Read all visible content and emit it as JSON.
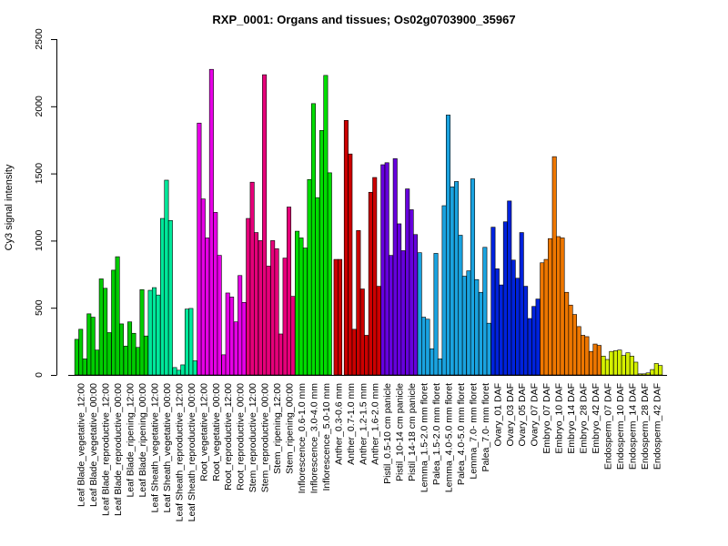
{
  "chart_data": {
    "type": "bar",
    "title": "RXP_0001: Organs and tissues; Os02g0703900_35967",
    "xlabel": "",
    "ylabel": "Cy3 signal intensity",
    "ylim": [
      0,
      2500
    ],
    "yticks": [
      "0",
      "500",
      "1000",
      "1500",
      "2000",
      "2500"
    ],
    "grid": false,
    "groups": [
      {
        "label": "Leaf Blade_vegetative_12:00",
        "color": "#00cc00",
        "values": [
          265,
          340,
          120
        ]
      },
      {
        "label": "Leaf Blade_vegetative_00:00",
        "color": "#00cc00",
        "values": [
          455,
          430,
          185
        ]
      },
      {
        "label": "Leaf Blade_reproductive_12:00",
        "color": "#00cc00",
        "values": [
          715,
          645,
          315
        ]
      },
      {
        "label": "Leaf Blade_reproductive_00:00",
        "color": "#00cc00",
        "values": [
          780,
          880,
          380
        ]
      },
      {
        "label": "Leaf Blade_ripening_12:00",
        "color": "#00cc00",
        "values": [
          215,
          395,
          310
        ]
      },
      {
        "label": "Leaf Blade_ripening_00:00",
        "color": "#00cc00",
        "values": [
          205,
          635,
          290
        ]
      },
      {
        "label": "Leaf Sheath_vegetative_12:00",
        "color": "#00e89a",
        "values": [
          630,
          650,
          595
        ]
      },
      {
        "label": "Leaf Sheath_vegetative_00:00",
        "color": "#00e89a",
        "values": [
          1165,
          1450,
          1150
        ]
      },
      {
        "label": "Leaf Sheath_reproductive_12:00",
        "color": "#00e89a",
        "values": [
          55,
          35,
          75
        ]
      },
      {
        "label": "Leaf Sheath_reproductive_00:00",
        "color": "#00e89a",
        "values": [
          490,
          495,
          105
        ]
      },
      {
        "label": "Root_vegetative_12:00",
        "color": "#e600e6",
        "values": [
          1875,
          1310,
          1020
        ]
      },
      {
        "label": "Root_vegetative_00:00",
        "color": "#e600e6",
        "values": [
          2275,
          1210,
          890
        ]
      },
      {
        "label": "Root_reproductive_12:00",
        "color": "#e600e6",
        "values": [
          150,
          610,
          580
        ]
      },
      {
        "label": "Root_reproductive_00:00",
        "color": "#e600e6",
        "values": [
          395,
          740,
          540
        ]
      },
      {
        "label": "Stem_reproductive_12:00",
        "color": "#e6007a",
        "values": [
          1165,
          1435,
          1060
        ]
      },
      {
        "label": "Stem_reproductive_00:00",
        "color": "#e6007a",
        "values": [
          1000,
          2235,
          810
        ]
      },
      {
        "label": "Stem_ripening_12:00",
        "color": "#e6007a",
        "values": [
          1000,
          940,
          305
        ]
      },
      {
        "label": "Stem_ripening_00:00",
        "color": "#e6007a",
        "values": [
          870,
          1250,
          585
        ]
      },
      {
        "label": "Inflorescence_0.6-1.0 mm",
        "color": "#00dd00",
        "values": [
          1070,
          1020,
          945
        ]
      },
      {
        "label": "Inflorescence_3.0-4.0 mm",
        "color": "#00dd00",
        "values": [
          1455,
          2020,
          1320
        ]
      },
      {
        "label": "Inflorescence_5.0-10 mm",
        "color": "#00dd00",
        "values": [
          1820,
          2230,
          1505
        ]
      },
      {
        "label": "Anther_0.3-0.6 mm",
        "color": "#cc0000",
        "values": [
          860,
          860
        ]
      },
      {
        "label": "Anther_0.7-1.0 mm",
        "color": "#cc0000",
        "values": [
          1895,
          1645,
          340
        ]
      },
      {
        "label": "Anther_1.2-1.5 mm",
        "color": "#cc0000",
        "values": [
          1075,
          640,
          295
        ]
      },
      {
        "label": "Anther_1.6-2.0 mm",
        "color": "#cc0000",
        "values": [
          1360,
          1470,
          660
        ]
      },
      {
        "label": "Pistil_0.5-10 cm panicle",
        "color": "#6600dd",
        "values": [
          1565,
          1580,
          890
        ]
      },
      {
        "label": "Pistil_10-14 cm panicle",
        "color": "#6600dd",
        "values": [
          1610,
          1125,
          925
        ]
      },
      {
        "label": "Pistil_14-18 cm panicle",
        "color": "#6600dd",
        "values": [
          1385,
          1230,
          1045
        ]
      },
      {
        "label": "Lemma_1.5-2.0 mm floret",
        "color": "#1aa3e0",
        "values": [
          910,
          430,
          415
        ]
      },
      {
        "label": "Palea_1.5-2.0 mm floret",
        "color": "#1aa3e0",
        "values": [
          195,
          905,
          120
        ]
      },
      {
        "label": "Lemma_4.0-5.0 mm floret",
        "color": "#1aa3e0",
        "values": [
          1260,
          1935,
          1400
        ]
      },
      {
        "label": "Palea_4.0-5.0 mm floret",
        "color": "#1aa3e0",
        "values": [
          1440,
          1040,
          735
        ]
      },
      {
        "label": "Lemma_7.0- mm floret",
        "color": "#1aa3e0",
        "values": [
          775,
          1460,
          710
        ]
      },
      {
        "label": "Palea_7.0- mm floret",
        "color": "#1aa3e0",
        "values": [
          615,
          950,
          385
        ]
      },
      {
        "label": "Ovary_01 DAF",
        "color": "#0022dd",
        "values": [
          1100,
          790,
          670
        ]
      },
      {
        "label": "Ovary_03 DAF",
        "color": "#0022dd",
        "values": [
          1140,
          1295,
          855
        ]
      },
      {
        "label": "Ovary_05 DAF",
        "color": "#0022dd",
        "values": [
          720,
          1060,
          660
        ]
      },
      {
        "label": "Ovary_07 DAF",
        "color": "#0022dd",
        "values": [
          420,
          510,
          565
        ]
      },
      {
        "label": "Embryo_07 DAF",
        "color": "#ee7700",
        "values": [
          835,
          860,
          1015
        ]
      },
      {
        "label": "Embryo_10 DAF",
        "color": "#ee7700",
        "values": [
          1625,
          1030,
          1020
        ]
      },
      {
        "label": "Embryo_14 DAF",
        "color": "#ee7700",
        "values": [
          615,
          520,
          450
        ]
      },
      {
        "label": "Embryo_28 DAF",
        "color": "#ee7700",
        "values": [
          360,
          295,
          285
        ]
      },
      {
        "label": "Embryo_42 DAF",
        "color": "#ee7700",
        "values": [
          175,
          230,
          220
        ]
      },
      {
        "label": "Endosperm_07 DAF",
        "color": "#d4f000",
        "values": [
          140,
          115,
          175
        ]
      },
      {
        "label": "Endosperm_10 DAF",
        "color": "#d4f000",
        "values": [
          180,
          185,
          145
        ]
      },
      {
        "label": "Endosperm_14 DAF",
        "color": "#d4f000",
        "values": [
          165,
          140,
          95
        ]
      },
      {
        "label": "Endosperm_28 DAF",
        "color": "#d4f000",
        "values": [
          8,
          8,
          15
        ]
      },
      {
        "label": "Endosperm_42 DAF",
        "color": "#d4f000",
        "values": [
          40,
          85,
          70
        ]
      }
    ]
  }
}
